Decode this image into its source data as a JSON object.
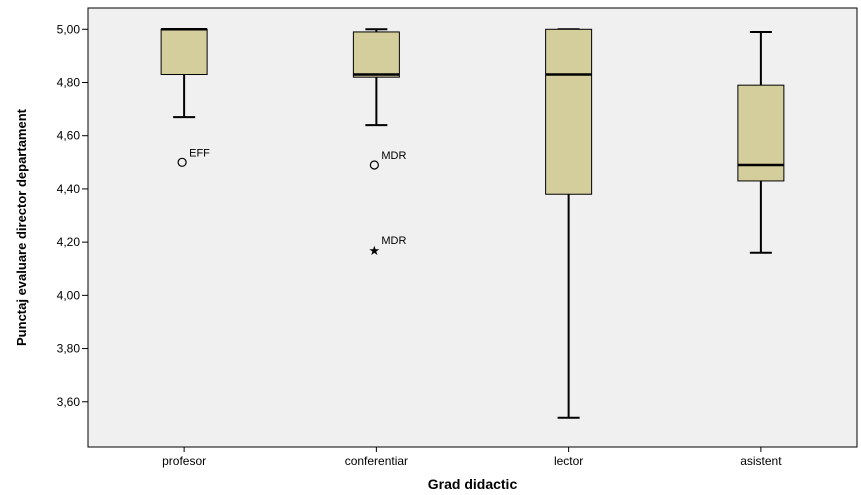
{
  "chart_data": {
    "type": "boxplot",
    "xlabel": "Grad didactic",
    "ylabel": "Punctaj evaluare director departament",
    "ylim": [
      3.43,
      5.08
    ],
    "yticks": [
      {
        "value": 5.0,
        "label": "5,00"
      },
      {
        "value": 4.8,
        "label": "4,80"
      },
      {
        "value": 4.6,
        "label": "4,60"
      },
      {
        "value": 4.4,
        "label": "4,40"
      },
      {
        "value": 4.2,
        "label": "4,20"
      },
      {
        "value": 4.0,
        "label": "4,00"
      },
      {
        "value": 3.8,
        "label": "3,80"
      },
      {
        "value": 3.6,
        "label": "3,60"
      }
    ],
    "categories": [
      "profesor",
      "conferentiar",
      "lector",
      "asistent"
    ],
    "boxes": [
      {
        "category": "profesor",
        "whisker_low": 4.67,
        "q1": 4.83,
        "median": 5.0,
        "q3": 5.0,
        "whisker_high": 5.0,
        "outliers": [
          {
            "value": 4.5,
            "marker": "circle",
            "label": "EFF"
          }
        ]
      },
      {
        "category": "conferentiar",
        "whisker_low": 4.64,
        "q1": 4.82,
        "median": 4.83,
        "q3": 4.99,
        "whisker_high": 5.0,
        "outliers": [
          {
            "value": 4.49,
            "marker": "circle",
            "label": "MDR"
          },
          {
            "value": 4.17,
            "marker": "star",
            "label": "MDR"
          }
        ]
      },
      {
        "category": "lector",
        "whisker_low": 3.54,
        "q1": 4.38,
        "median": 4.83,
        "q3": 5.0,
        "whisker_high": 5.0,
        "outliers": []
      },
      {
        "category": "asistent",
        "whisker_low": 4.16,
        "q1": 4.43,
        "median": 4.49,
        "q3": 4.79,
        "whisker_high": 4.99,
        "outliers": []
      }
    ],
    "grid": false,
    "colors": {
      "box_fill": "#d4ce9c",
      "plot_background": "#f0f0f0",
      "line": "#000000"
    }
  }
}
